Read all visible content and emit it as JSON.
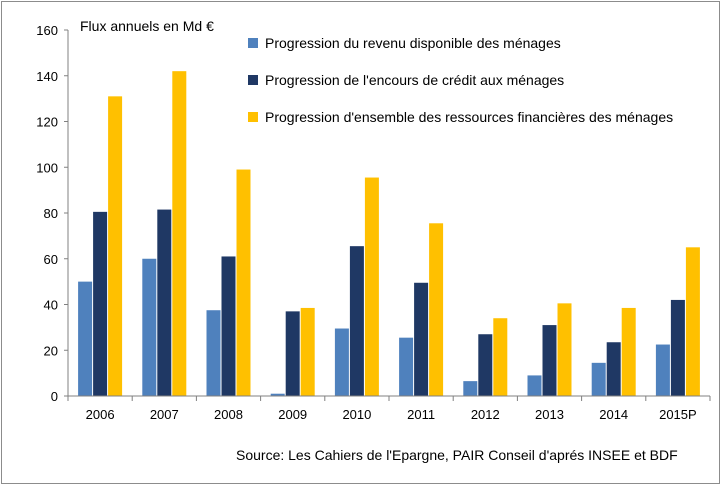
{
  "chart_data": {
    "type": "bar",
    "ylabel": "Flux annuels en Md €",
    "ylim": [
      0,
      160
    ],
    "yticks": [
      0,
      20,
      40,
      60,
      80,
      100,
      120,
      140,
      160
    ],
    "categories": [
      "2006",
      "2007",
      "2008",
      "2009",
      "2010",
      "2011",
      "2012",
      "2013",
      "2014",
      "2015P"
    ],
    "series": [
      {
        "name": "Progression du revenu disponible des ménages",
        "color": "#4f81bd",
        "values": [
          50,
          60,
          37.5,
          1,
          29.5,
          25.5,
          6.5,
          9,
          14.5,
          22.5
        ]
      },
      {
        "name": "Progression de l'encours de crédit aux ménages",
        "color": "#1f3864",
        "values": [
          80.5,
          81.5,
          61,
          37,
          65.5,
          49.5,
          27,
          31,
          23.5,
          42
        ]
      },
      {
        "name": "Progression d'ensemble des ressources financières des ménages",
        "color": "#ffc000",
        "values": [
          131,
          142,
          99,
          38.5,
          95.5,
          75.5,
          34,
          40.5,
          38.5,
          65
        ]
      }
    ],
    "legend_position": "top-right",
    "grid": false
  },
  "source": "Source: Les Cahiers de l'Epargne, PAIR Conseil d'aprés INSEE et BDF"
}
